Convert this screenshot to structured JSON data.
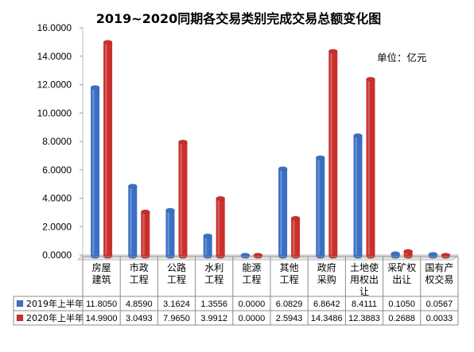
{
  "chart_data": {
    "type": "bar",
    "title": "2019~2020同期各交易类别完成交易总额变化图",
    "unit_label": "单位：亿元",
    "categories": [
      [
        "房屋",
        "建筑"
      ],
      [
        "市政",
        "工程"
      ],
      [
        "公路",
        "工程"
      ],
      [
        "水利",
        "工程"
      ],
      [
        "能源",
        "工程"
      ],
      [
        "其他",
        "工程"
      ],
      [
        "政府",
        "采购"
      ],
      [
        "土地使",
        "用权出",
        "让"
      ],
      [
        "采矿权",
        "出让"
      ],
      [
        "国有产",
        "权交易"
      ]
    ],
    "series": [
      {
        "name": "2019年上半年",
        "color": "#3A6FC4",
        "values": [
          11.805,
          4.859,
          3.1624,
          1.3556,
          0.0,
          6.0829,
          6.8642,
          8.4111,
          0.105,
          0.0567
        ],
        "labels": [
          "11.8050",
          "4.8590",
          "3.1624",
          "1.3556",
          "0.0000",
          "6.0829",
          "6.8642",
          "8.4111",
          "0.1050",
          "0.0567"
        ]
      },
      {
        "name": "2020年上半年",
        "color": "#C9302C",
        "values": [
          14.99,
          3.0493,
          7.965,
          3.9912,
          0.0,
          2.5943,
          14.3486,
          12.3883,
          0.2688,
          0.0033
        ],
        "labels": [
          "14.9900",
          "3.0493",
          "7.9650",
          "3.9912",
          "0.0000",
          "2.5943",
          "14.3486",
          "12.3883",
          "0.2688",
          "0.0033"
        ]
      }
    ],
    "ylim": [
      0,
      16
    ],
    "yticks": [
      "0.0000",
      "2.0000",
      "4.0000",
      "6.0000",
      "8.0000",
      "10.0000",
      "12.0000",
      "14.0000",
      "16.0000"
    ],
    "grid": false,
    "legend": "data-table-left"
  }
}
